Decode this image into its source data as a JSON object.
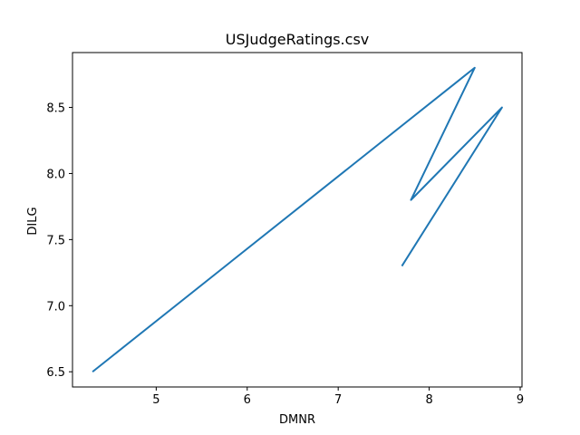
{
  "chart_data": {
    "type": "line",
    "title": "USJudgeRatings.csv",
    "xlabel": "DMNR",
    "ylabel": "DILG",
    "xlim": [
      4.08,
      9.02
    ],
    "ylim": [
      6.385,
      8.915
    ],
    "xticks": [
      5,
      6,
      7,
      8,
      9
    ],
    "yticks": [
      6.5,
      7.0,
      7.5,
      8.0,
      8.5
    ],
    "xtick_labels": [
      "5",
      "6",
      "7",
      "8",
      "9"
    ],
    "ytick_labels": [
      "6.5",
      "7.0",
      "7.5",
      "8.0",
      "8.5"
    ],
    "grid": false,
    "series": [
      {
        "color": "#1f77b4",
        "x": [
          4.3,
          8.5,
          7.8,
          8.8,
          7.7
        ],
        "y": [
          6.5,
          8.8,
          7.8,
          8.5,
          7.3
        ]
      }
    ]
  }
}
